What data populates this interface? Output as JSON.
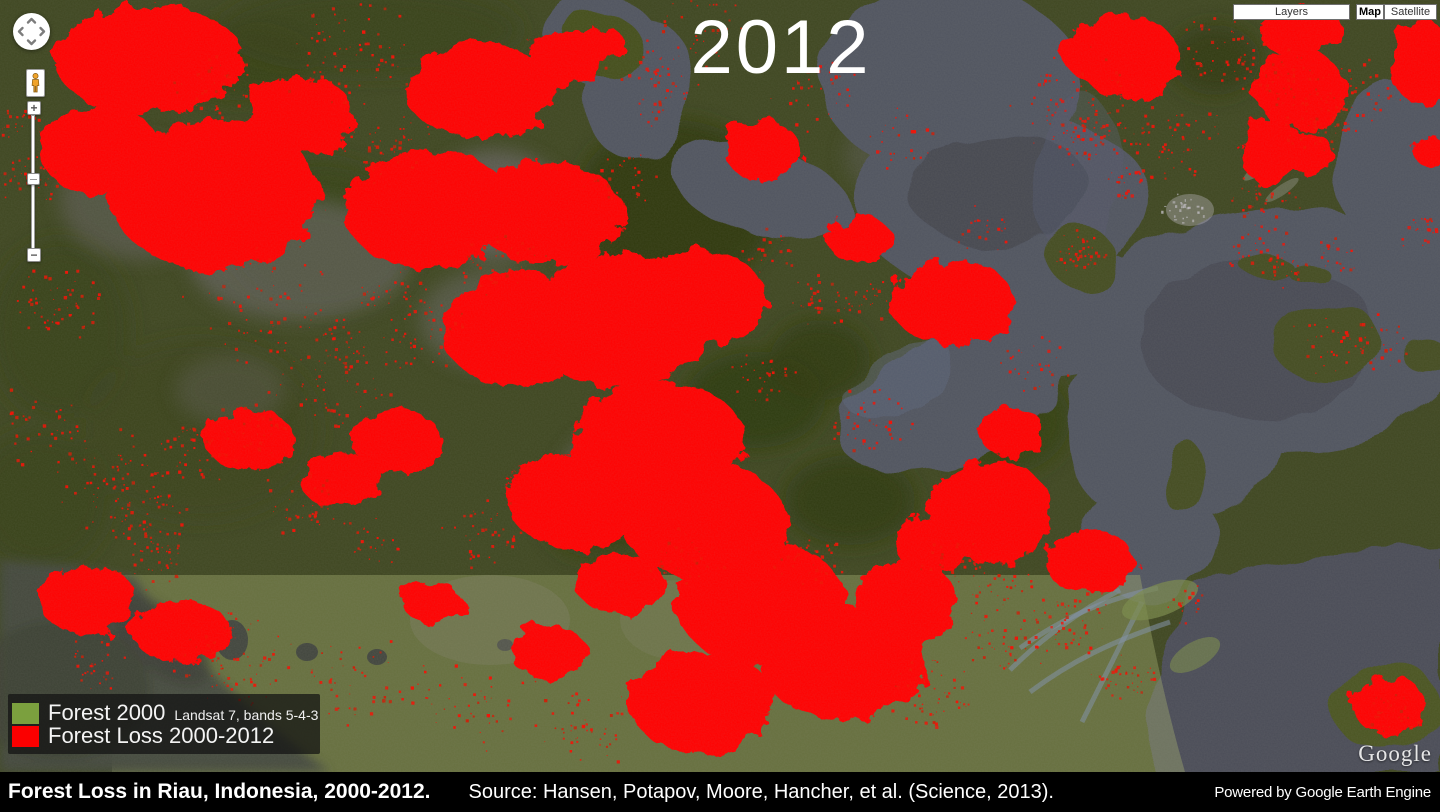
{
  "map": {
    "year_label": "2012",
    "google_watermark": "Google"
  },
  "controls": {
    "layers_label": "Layers",
    "map_label": "Map",
    "satellite_label": "Satellite",
    "zoom_in_label": "+",
    "zoom_out_label": "−"
  },
  "legend": {
    "items": [
      {
        "label": "Forest 2000",
        "note": "Landsat 7, bands 5-4-3",
        "color": "#7ba03e"
      },
      {
        "label": "Forest Loss 2000-2012",
        "note": "",
        "color": "#fb0000"
      }
    ]
  },
  "footer": {
    "title": "Forest Loss in Riau, Indonesia, 2000-2012.",
    "source": "Source: Hansen, Potapov, Moore, Hancher, et al. (Science, 2013).",
    "powered_by": "Powered by Google Earth Engine"
  },
  "colors": {
    "forest_2000": "#7ba03e",
    "forest_loss": "#ff0000",
    "base_forest": "#3f4721",
    "water": "#515460",
    "lowland_band": "#6f7c44",
    "caption_bar": "#000000"
  }
}
